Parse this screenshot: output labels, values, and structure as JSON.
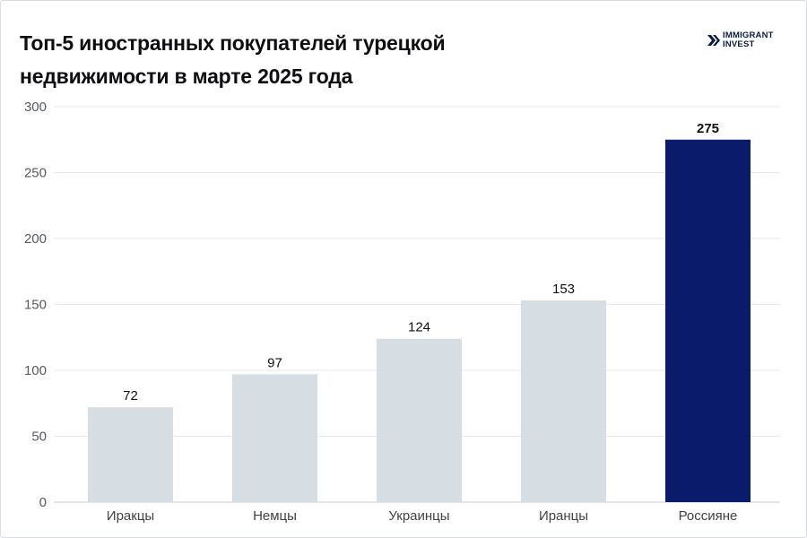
{
  "chart_data": {
    "type": "bar",
    "title_line1": "Топ-5 иностранных покупателей турецкой",
    "title_line2": "недвижимости в марте 2025 года",
    "categories": [
      "Иракцы",
      "Немцы",
      "Украинцы",
      "Иранцы",
      "Россияне"
    ],
    "values": [
      72,
      97,
      124,
      153,
      275
    ],
    "ylim": [
      0,
      300
    ],
    "yticks": [
      0,
      50,
      100,
      150,
      200,
      250,
      300
    ],
    "grid": true,
    "legend": "none",
    "highlight_index": 4
  },
  "logo": {
    "line1": "IMMIGRANT",
    "line2": "INVEST"
  },
  "colors": {
    "bar_default": "#d6dde3",
    "bar_highlight": "#0a1b6b",
    "grid": "#e6e9ec",
    "axis": "#c9ced3",
    "logo": "#0d1b3e"
  }
}
